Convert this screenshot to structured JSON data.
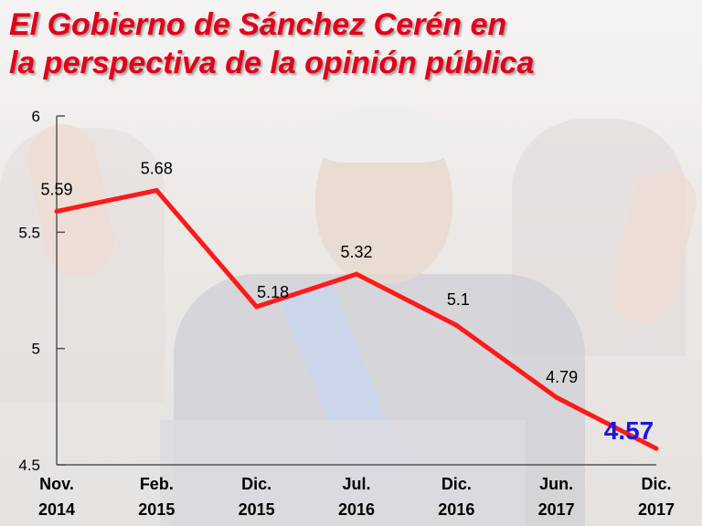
{
  "page": {
    "title_line1": "El Gobierno de Sánchez Cerén en",
    "title_line2": "la perspectiva de la opinión pública"
  },
  "chart_data": {
    "type": "line",
    "title": "El Gobierno de Sánchez Cerén en la perspectiva de la opinión pública",
    "xlabel": "",
    "ylabel": "",
    "categories": [
      [
        "Nov.",
        "2014"
      ],
      [
        "Feb.",
        "2015"
      ],
      [
        "Dic.",
        "2015"
      ],
      [
        "Jul.",
        "2016"
      ],
      [
        "Dic.",
        "2016"
      ],
      [
        "Jun.",
        "2017"
      ],
      [
        "Dic.",
        "2017"
      ]
    ],
    "values": [
      5.59,
      5.68,
      5.18,
      5.32,
      5.1,
      4.79,
      4.57
    ],
    "data_labels": [
      "5.59",
      "5.68",
      "5.18",
      "5.32",
      "5.1",
      "4.79",
      "4.57"
    ],
    "highlight_index": 6,
    "ylim": [
      4.5,
      6
    ],
    "yticks": [
      4.5,
      5,
      5.5,
      6
    ],
    "ytick_labels": [
      "4.5",
      "5",
      "5.5",
      "6"
    ],
    "grid": false,
    "legend": "none",
    "colors": {
      "line": "#ff1a1a",
      "highlight_label": "#1616e6",
      "title": "#e2001a"
    }
  }
}
